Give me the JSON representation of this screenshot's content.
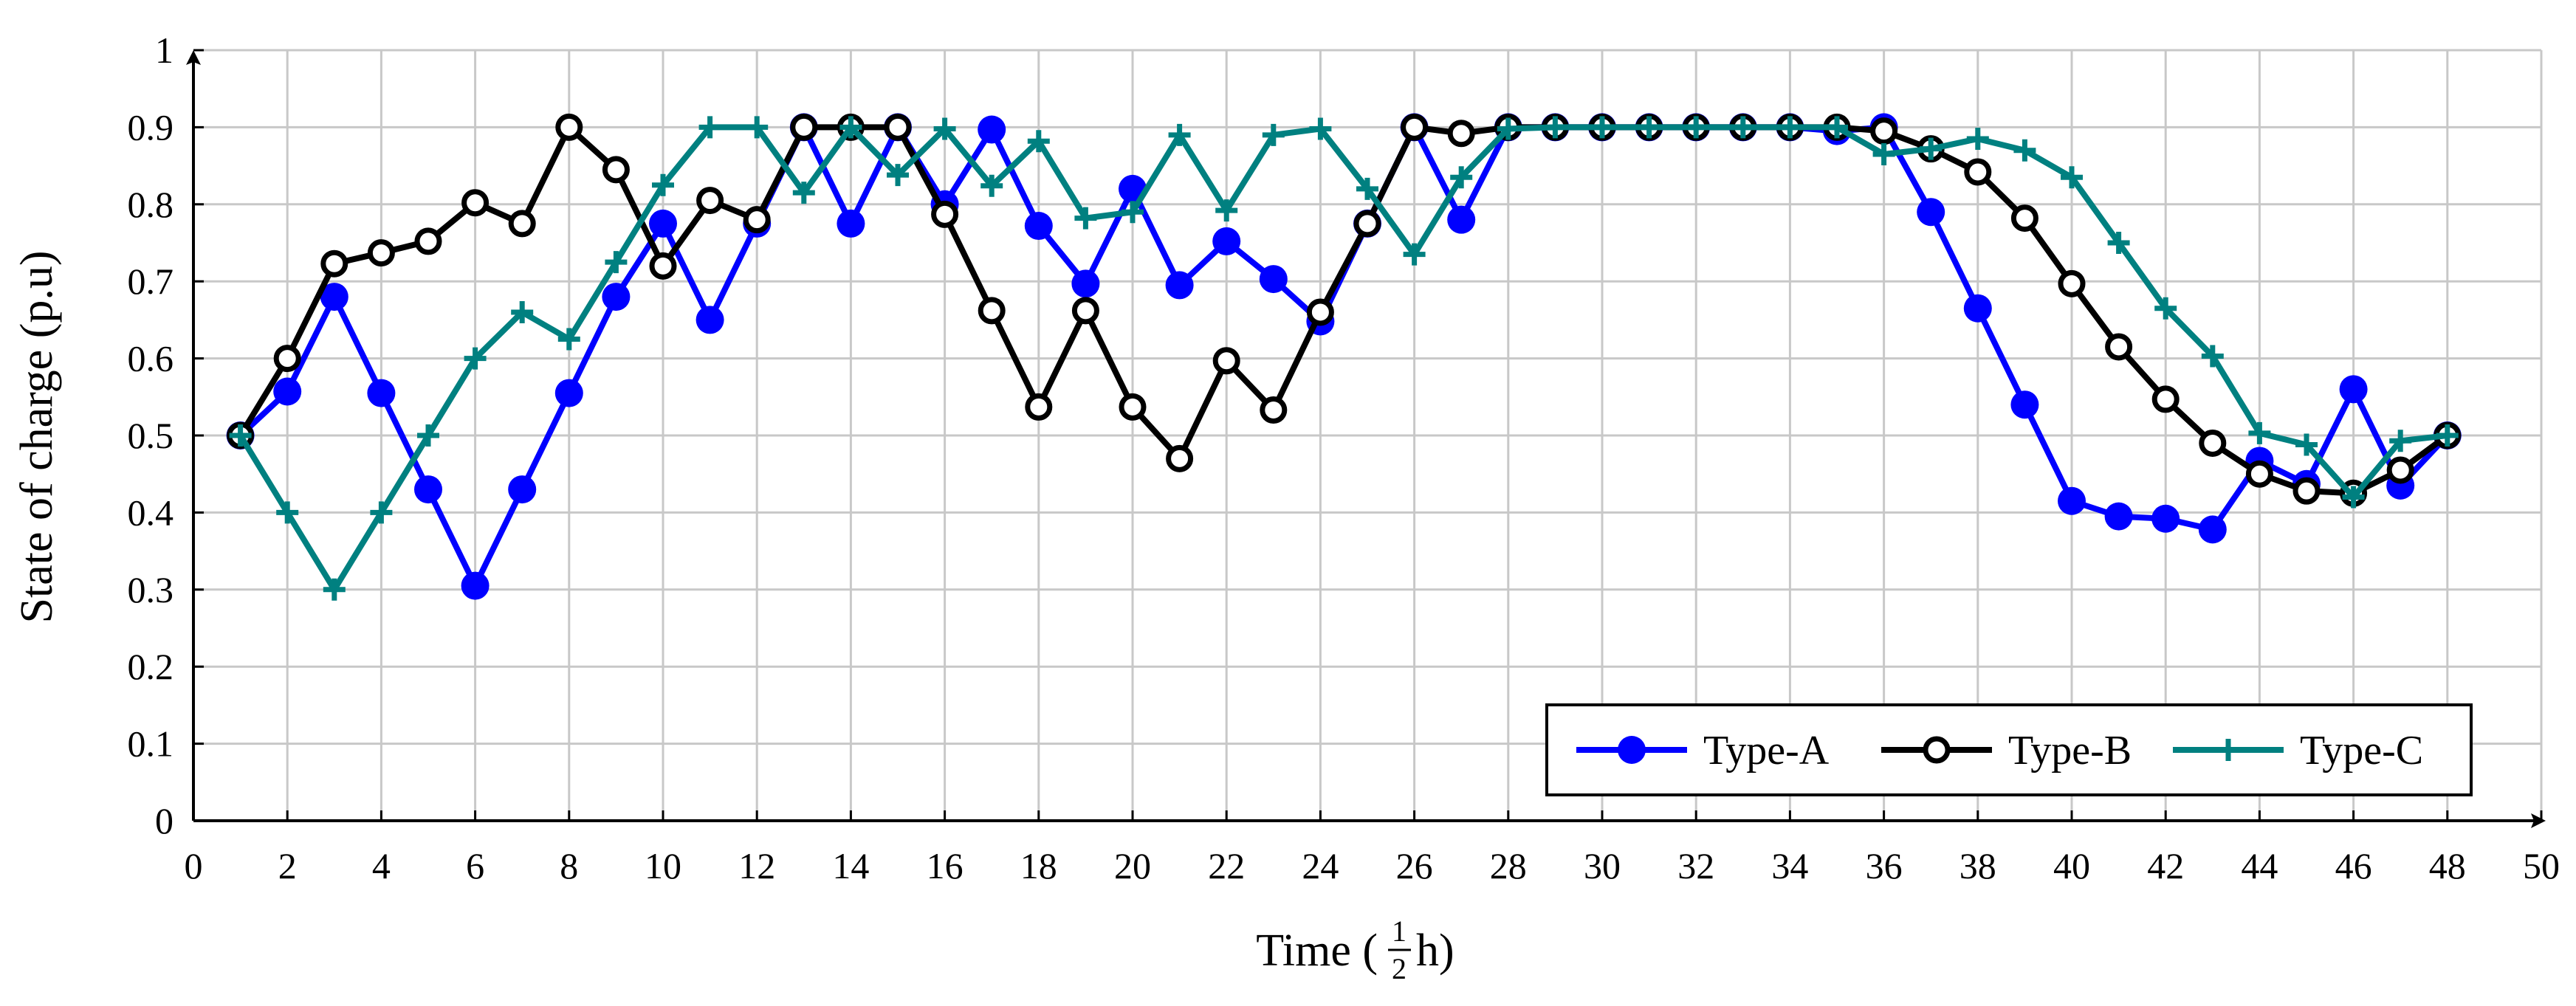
{
  "chart_data": {
    "type": "line",
    "title": "",
    "xlabel": "Time (",
    "xlabel_frac_num": "1",
    "xlabel_frac_den": "2",
    "xlabel_suffix": "h)",
    "ylabel": "State of charge (p.u)",
    "xlim": [
      0,
      50
    ],
    "ylim": [
      0,
      1
    ],
    "xticks": [
      0,
      2,
      4,
      6,
      8,
      10,
      12,
      14,
      16,
      18,
      20,
      22,
      24,
      26,
      28,
      30,
      32,
      34,
      36,
      38,
      40,
      42,
      44,
      46,
      48,
      50
    ],
    "yticks": [
      0,
      0.1,
      0.2,
      0.3,
      0.4,
      0.5,
      0.6,
      0.7,
      0.8,
      0.9,
      1
    ],
    "ytick_labels": [
      "0",
      "0.1",
      "0.2",
      "0.3",
      "0.4",
      "0.5",
      "0.6",
      "0.7",
      "0.8",
      "0.9",
      "1"
    ],
    "grid": true,
    "legend_position": "bottom-right",
    "x": [
      1,
      2,
      3,
      4,
      5,
      6,
      7,
      8,
      9,
      10,
      11,
      12,
      13,
      14,
      15,
      16,
      17,
      18,
      19,
      20,
      21,
      22,
      23,
      24,
      25,
      26,
      27,
      28,
      29,
      30,
      31,
      32,
      33,
      34,
      35,
      36,
      37,
      38,
      39,
      40,
      41,
      42,
      43,
      44,
      45,
      46,
      47,
      48
    ],
    "series": [
      {
        "name": "Type-A",
        "color": "#0000ff",
        "marker": "filled-circle",
        "values": [
          0.5,
          0.557,
          0.68,
          0.555,
          0.43,
          0.305,
          0.43,
          0.555,
          0.68,
          0.775,
          0.65,
          0.775,
          0.9,
          0.775,
          0.9,
          0.8,
          0.897,
          0.772,
          0.697,
          0.82,
          0.695,
          0.752,
          0.703,
          0.648,
          0.775,
          0.9,
          0.78,
          0.9,
          0.9,
          0.9,
          0.9,
          0.9,
          0.9,
          0.9,
          0.895,
          0.9,
          0.79,
          0.665,
          0.54,
          0.415,
          0.395,
          0.392,
          0.378,
          0.467,
          0.437,
          0.56,
          0.435,
          0.5
        ]
      },
      {
        "name": "Type-B",
        "color": "#000000",
        "marker": "open-circle",
        "values": [
          0.5,
          0.6,
          0.723,
          0.737,
          0.752,
          0.802,
          0.775,
          0.9,
          0.845,
          0.72,
          0.805,
          0.78,
          0.9,
          0.9,
          0.9,
          0.787,
          0.662,
          0.537,
          0.662,
          0.537,
          0.47,
          0.597,
          0.533,
          0.66,
          0.775,
          0.9,
          0.892,
          0.9,
          0.9,
          0.9,
          0.9,
          0.9,
          0.9,
          0.9,
          0.9,
          0.895,
          0.872,
          0.842,
          0.782,
          0.697,
          0.615,
          0.547,
          0.49,
          0.45,
          0.428,
          0.425,
          0.455,
          0.5
        ]
      },
      {
        "name": "Type-C",
        "color": "#008080",
        "marker": "plus",
        "values": [
          0.5,
          0.4,
          0.3,
          0.4,
          0.5,
          0.6,
          0.66,
          0.625,
          0.725,
          0.825,
          0.9,
          0.9,
          0.815,
          0.9,
          0.838,
          0.898,
          0.824,
          0.882,
          0.782,
          0.79,
          0.89,
          0.792,
          0.89,
          0.898,
          0.82,
          0.735,
          0.835,
          0.898,
          0.9,
          0.9,
          0.9,
          0.9,
          0.9,
          0.9,
          0.9,
          0.865,
          0.872,
          0.885,
          0.87,
          0.835,
          0.75,
          0.665,
          0.603,
          0.503,
          0.488,
          0.42,
          0.493,
          0.5
        ]
      }
    ]
  }
}
